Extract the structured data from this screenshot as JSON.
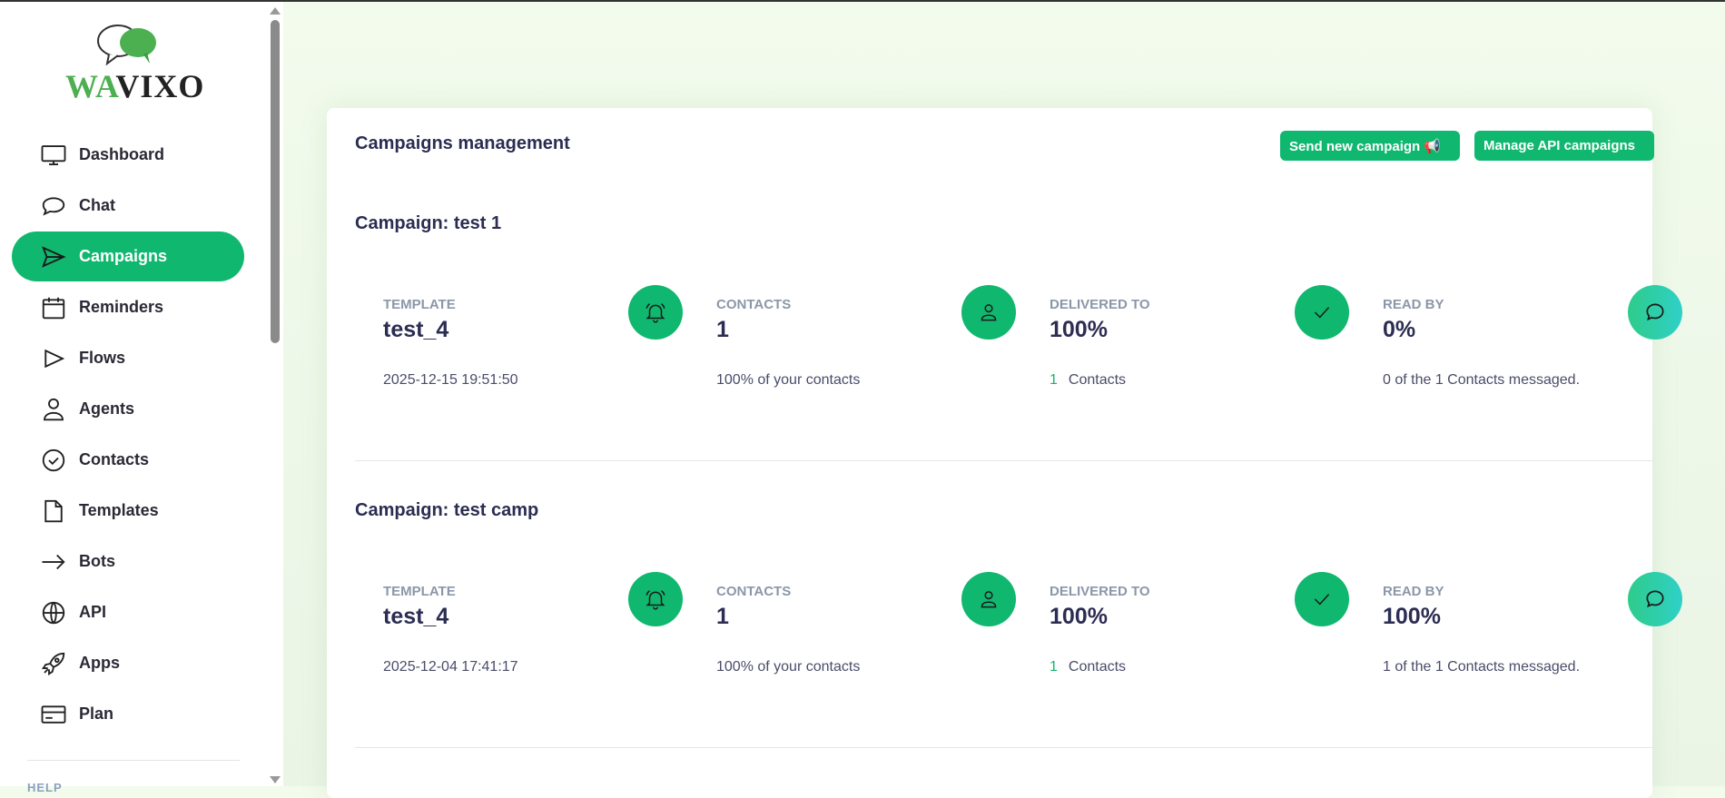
{
  "brand": {
    "logo_text_a": "WA",
    "logo_text_b": "VIXO"
  },
  "sidebar": {
    "items": [
      {
        "label": "Dashboard",
        "icon": "monitor-icon"
      },
      {
        "label": "Chat",
        "icon": "chat-bubble-icon"
      },
      {
        "label": "Campaigns",
        "icon": "send-icon",
        "active": true
      },
      {
        "label": "Reminders",
        "icon": "calendar-icon"
      },
      {
        "label": "Flows",
        "icon": "play-icon"
      },
      {
        "label": "Agents",
        "icon": "user-icon"
      },
      {
        "label": "Contacts",
        "icon": "badge-check-icon"
      },
      {
        "label": "Templates",
        "icon": "document-icon"
      },
      {
        "label": "Bots",
        "icon": "arrow-right-icon"
      },
      {
        "label": "API",
        "icon": "globe-icon"
      },
      {
        "label": "Apps",
        "icon": "rocket-icon"
      },
      {
        "label": "Plan",
        "icon": "credit-card-icon"
      }
    ],
    "section_help": "HELP"
  },
  "main": {
    "title": "Campaigns management",
    "send_button": "Send new campaign 📢",
    "manage_button": "Manage API campaigns",
    "campaigns": [
      {
        "title": "Campaign: test 1",
        "template": {
          "label": "TEMPLATE",
          "value": "test_4",
          "sub": "2025-12-15 19:51:50"
        },
        "contacts": {
          "label": "CONTACTS",
          "value": "1",
          "sub": "100% of your contacts"
        },
        "delivered": {
          "label": "DELIVERED TO",
          "value": "100%",
          "sub_num": "1",
          "sub": "Contacts"
        },
        "read": {
          "label": "READ BY",
          "value": "0%",
          "sub": "0 of the 1 Contacts messaged."
        }
      },
      {
        "title": "Campaign: test camp",
        "template": {
          "label": "TEMPLATE",
          "value": "test_4",
          "sub": "2025-12-04 17:41:17"
        },
        "contacts": {
          "label": "CONTACTS",
          "value": "1",
          "sub": "100% of your contacts"
        },
        "delivered": {
          "label": "DELIVERED TO",
          "value": "100%",
          "sub_num": "1",
          "sub": "Contacts"
        },
        "read": {
          "label": "READ BY",
          "value": "100%",
          "sub": "1 of the 1 Contacts messaged."
        }
      }
    ]
  },
  "colors": {
    "accent": "#10b76f",
    "text": "#2b2d52",
    "muted": "#8b97a8"
  }
}
